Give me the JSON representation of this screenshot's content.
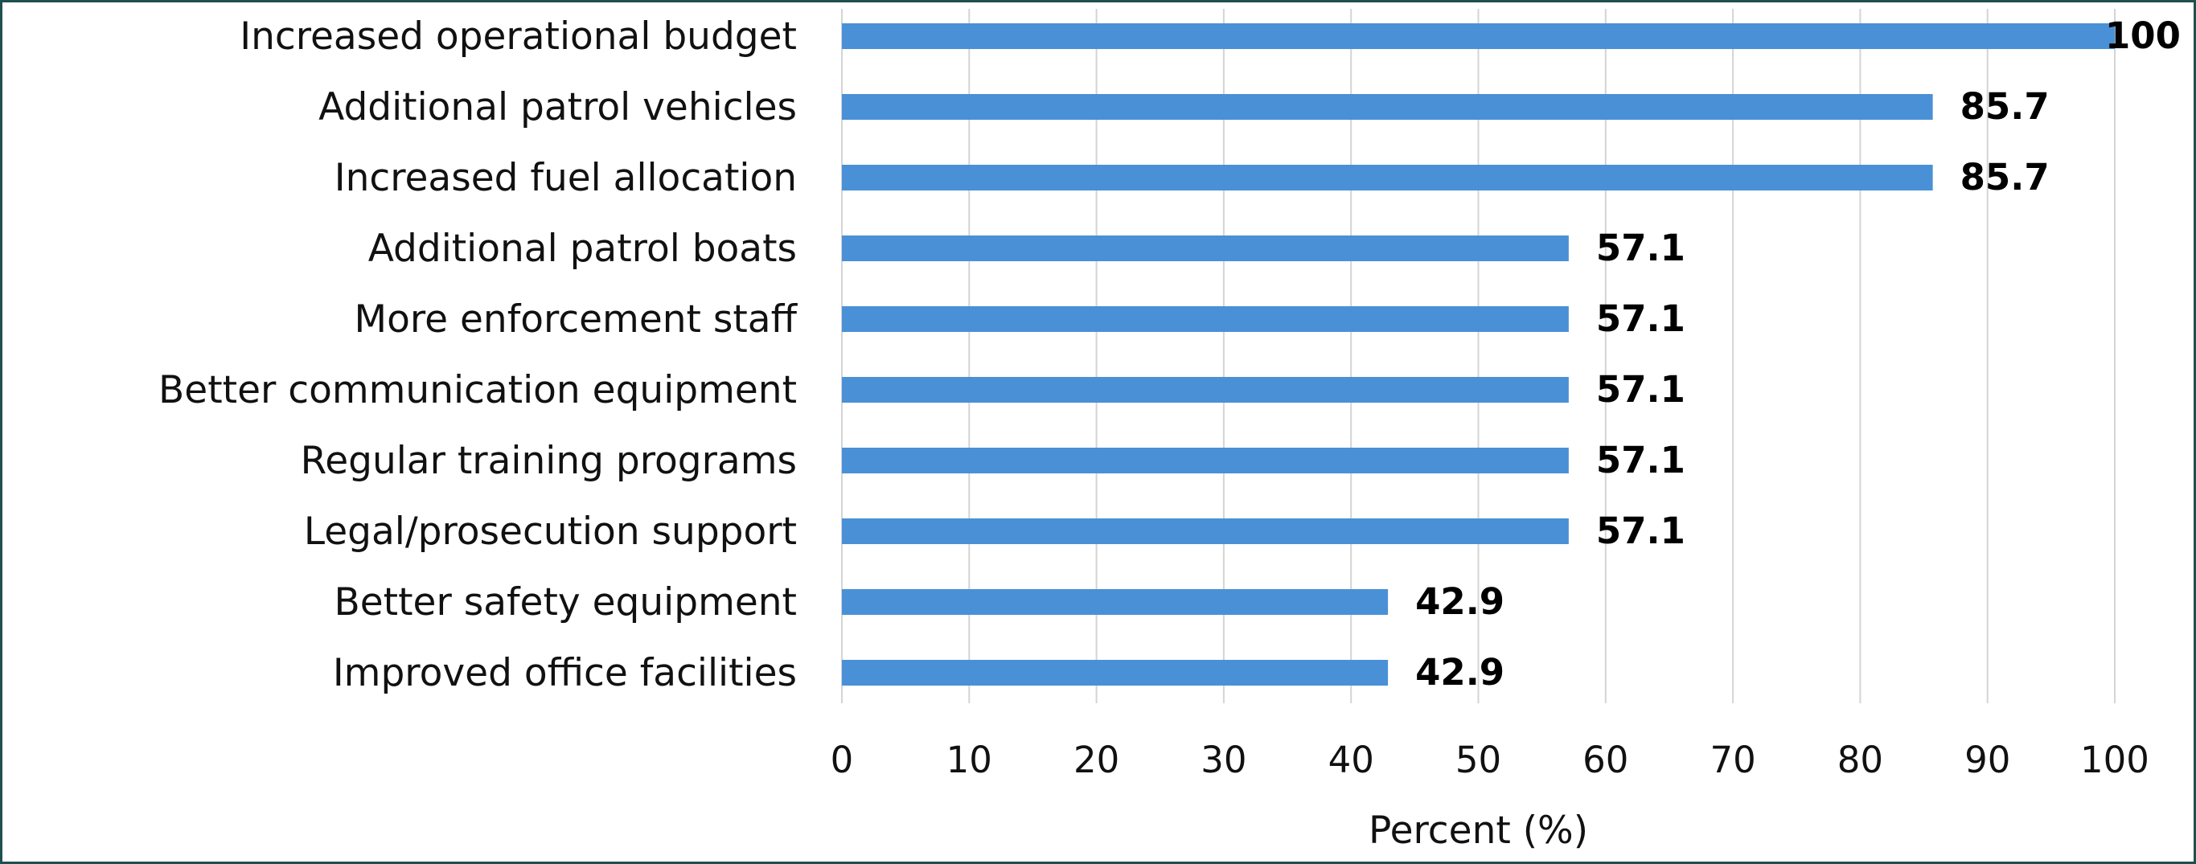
{
  "chart_data": {
    "type": "bar",
    "orientation": "horizontal",
    "categories": [
      "Increased operational budget",
      "Additional patrol vehicles",
      "Increased fuel allocation",
      "Additional patrol boats",
      "More enforcement staff",
      "Better communication equipment",
      "Regular training programs",
      "Legal/prosecution support",
      "Better safety equipment",
      "Improved office facilities"
    ],
    "values": [
      100,
      85.7,
      85.7,
      57.1,
      57.1,
      57.1,
      57.1,
      57.1,
      42.9,
      42.9
    ],
    "data_labels": [
      "100",
      "85.7",
      "85.7",
      "57.1",
      "57.1",
      "57.1",
      "57.1",
      "57.1",
      "42.9",
      "42.9"
    ],
    "xlabel": "Percent (%)",
    "xlim": [
      0,
      100
    ],
    "xticks": [
      "0",
      "10",
      "20",
      "30",
      "40",
      "50",
      "60",
      "70",
      "80",
      "90",
      "100"
    ],
    "grid": "vertical",
    "legend": "none",
    "bar_color": "#4a90d6",
    "grid_color": "#d4d4d4",
    "frame_color": "#1f4f4f"
  }
}
